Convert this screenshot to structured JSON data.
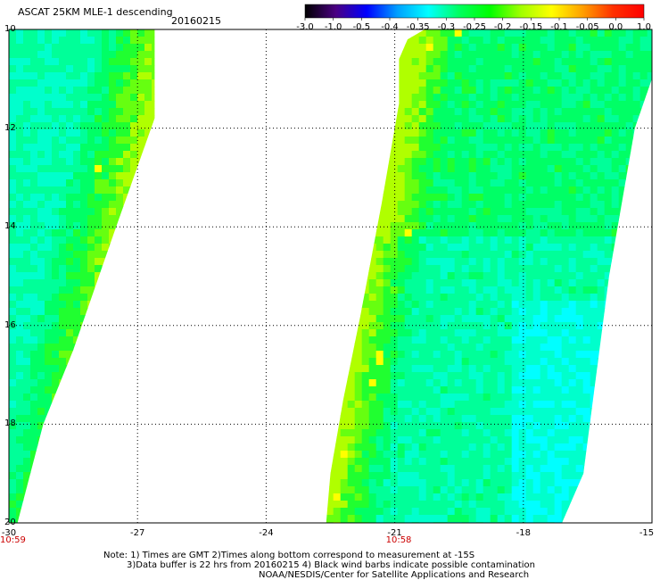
{
  "header": {
    "title": "ASCAT 25KM MLE-1 descending",
    "date": "20160215"
  },
  "colorbar": {
    "labels": [
      "-3.0",
      "-1.0",
      "-0.5",
      "-0.4",
      "-0.35",
      "-0.3",
      "-0.25",
      "-0.2",
      "-0.15",
      "-0.1",
      "-0.05",
      "0.0",
      "1.0"
    ],
    "colors": [
      "#000000",
      "#4b0082",
      "#0000ff",
      "#00a0ff",
      "#00ffff",
      "#00ff60",
      "#00ff00",
      "#a0ff00",
      "#ffff00",
      "#ffa000",
      "#ff3000",
      "#ff0000"
    ]
  },
  "map": {
    "lat_labels": [
      "10",
      "12",
      "14",
      "16",
      "18",
      "20"
    ],
    "lon_labels": [
      "-30",
      "-27",
      "-24",
      "-21",
      "-18",
      "-15"
    ],
    "lat_values": [
      -10,
      -12,
      -14,
      -16,
      -18,
      -20
    ],
    "lon_values": [
      -30,
      -27,
      -24,
      -21,
      -18,
      -15
    ],
    "time_labels": [
      {
        "text": "10:59",
        "lon": -30
      },
      {
        "text": "10:58",
        "lon": -21
      }
    ],
    "swaths": [
      {
        "name": "west-swath",
        "polygon_lonlat": [
          [
            -30,
            -10
          ],
          [
            -26.6,
            -10
          ],
          [
            -26.6,
            -11.8
          ],
          [
            -27.5,
            -14
          ],
          [
            -28.5,
            -16.5
          ],
          [
            -29.2,
            -18
          ],
          [
            -29.8,
            -20
          ],
          [
            -30,
            -20
          ]
        ]
      },
      {
        "name": "east-swath",
        "polygon_lonlat": [
          [
            -20.9,
            -10.6
          ],
          [
            -20.7,
            -10.2
          ],
          [
            -20.3,
            -10.0
          ],
          [
            -15,
            -10.0
          ],
          [
            -15,
            -11.0
          ],
          [
            -15.4,
            -12
          ],
          [
            -16.0,
            -15
          ],
          [
            -16.3,
            -17
          ],
          [
            -16.6,
            -19
          ],
          [
            -17.1,
            -20
          ],
          [
            -22.6,
            -20
          ],
          [
            -22.5,
            -19
          ],
          [
            -22.2,
            -17.5
          ],
          [
            -21.8,
            -15.8
          ],
          [
            -21.3,
            -13.5
          ],
          [
            -21.0,
            -12
          ],
          [
            -20.9,
            -11.5
          ]
        ]
      }
    ]
  },
  "notes": {
    "line1": "Note: 1) Times are GMT 2)Times along bottom correspond to measurement at -15S",
    "line2": "3)Data buffer is 22 hrs from 20160215 4) Black wind barbs indicate possible contamination",
    "line3": "NOAA/NESDIS/Center for Satellite Applications and Research"
  }
}
